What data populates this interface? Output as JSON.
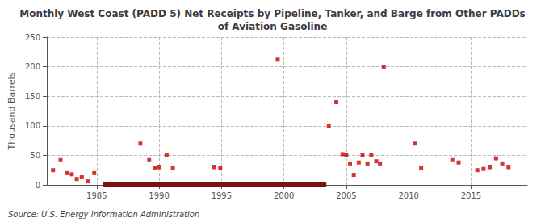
{
  "chart_data": {
    "type": "scatter",
    "title": "Monthly West Coast (PADD 5) Net Receipts by Pipeline, Tanker, and Barge from Other PADDs\nof Aviation Gasoline",
    "ylabel": "Thousand Barrels",
    "annotation": "Source: U.S. Energy Information Administration",
    "xlim": [
      1981.0,
      2019.5
    ],
    "xticks": [
      1985,
      1990,
      1995,
      2000,
      2005,
      2010,
      2015
    ],
    "ylim": [
      0,
      250
    ],
    "yticks": [
      0,
      50,
      100,
      150,
      200,
      250
    ],
    "grid": true,
    "series": [
      {
        "type": "scatter",
        "color": "#cc0000",
        "marker": "square",
        "x": [
          1981.5,
          1982.1,
          1982.6,
          1983.0,
          1983.4,
          1983.8,
          1984.3,
          1984.8,
          1988.5,
          1989.2,
          1989.7,
          1990.0,
          1990.6,
          1991.1,
          1994.4,
          1994.9,
          1999.5,
          2003.6,
          2004.2,
          2004.7,
          2005.0,
          2005.3,
          2005.6,
          2006.0,
          2006.3,
          2006.7,
          2007.0,
          2007.4,
          2007.7,
          2008.0,
          2010.5,
          2011.0,
          2013.5,
          2014.0,
          2015.5,
          2016.0,
          2016.5,
          2017.0,
          2017.5,
          2018.0
        ],
        "values": [
          25,
          42,
          20,
          18,
          10,
          13,
          6,
          20,
          70,
          42,
          28,
          30,
          50,
          28,
          30,
          28,
          212,
          100,
          140,
          52,
          50,
          35,
          17,
          38,
          50,
          35,
          50,
          40,
          35,
          200,
          70,
          28,
          42,
          38,
          25,
          27,
          30,
          45,
          35,
          30
        ]
      },
      {
        "type": "line",
        "color": "#7a1010",
        "line_style": "solid",
        "x": [
          1985.5,
          2003.4
        ],
        "values": [
          0,
          0
        ]
      }
    ]
  }
}
